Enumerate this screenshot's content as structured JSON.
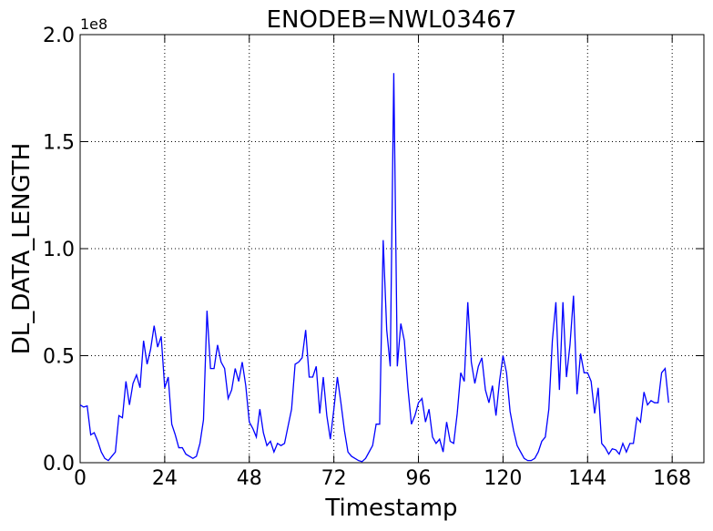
{
  "chart_data": {
    "type": "line",
    "title": "ENODEB=NWL03467",
    "x_label": "Timestamp",
    "y_label": "DL_DATA_LENGTH",
    "y_offset_text": "1e8",
    "x": [
      0,
      1,
      2,
      3,
      4,
      5,
      6,
      7,
      8,
      9,
      10,
      11,
      12,
      13,
      14,
      15,
      16,
      17,
      18,
      19,
      20,
      21,
      22,
      23,
      24,
      25,
      26,
      27,
      28,
      29,
      30,
      31,
      32,
      33,
      34,
      35,
      36,
      37,
      38,
      39,
      40,
      41,
      42,
      43,
      44,
      45,
      46,
      47,
      48,
      49,
      50,
      51,
      52,
      53,
      54,
      55,
      56,
      57,
      58,
      59,
      60,
      61,
      62,
      63,
      64,
      65,
      66,
      67,
      68,
      69,
      70,
      71,
      72,
      73,
      74,
      75,
      76,
      77,
      78,
      79,
      80,
      81,
      82,
      83,
      84,
      85,
      86,
      87,
      88,
      89,
      90,
      91,
      92,
      93,
      94,
      95,
      96,
      97,
      98,
      99,
      100,
      101,
      102,
      103,
      104,
      105,
      106,
      107,
      108,
      109,
      110,
      111,
      112,
      113,
      114,
      115,
      116,
      117,
      118,
      119,
      120,
      121,
      122,
      123,
      124,
      125,
      126,
      127,
      128,
      129,
      130,
      131,
      132,
      133,
      134,
      135,
      136,
      137,
      138,
      139,
      140,
      141,
      142,
      143,
      144,
      145,
      146,
      147,
      148,
      149,
      150,
      151,
      152,
      153,
      154,
      155,
      156,
      157,
      158,
      159,
      160,
      161,
      162,
      163,
      164,
      165,
      166,
      167
    ],
    "series": [
      {
        "name": "DL_DATA_LENGTH",
        "color": "#0000ff",
        "values": [
          0.27,
          0.26,
          0.265,
          0.13,
          0.14,
          0.1,
          0.05,
          0.02,
          0.01,
          0.03,
          0.05,
          0.22,
          0.21,
          0.38,
          0.27,
          0.37,
          0.41,
          0.35,
          0.57,
          0.46,
          0.53,
          0.64,
          0.54,
          0.59,
          0.35,
          0.4,
          0.18,
          0.13,
          0.07,
          0.07,
          0.04,
          0.03,
          0.02,
          0.03,
          0.09,
          0.2,
          0.71,
          0.44,
          0.44,
          0.55,
          0.47,
          0.44,
          0.3,
          0.34,
          0.44,
          0.38,
          0.47,
          0.36,
          0.19,
          0.16,
          0.12,
          0.25,
          0.14,
          0.08,
          0.1,
          0.05,
          0.09,
          0.08,
          0.09,
          0.17,
          0.25,
          0.46,
          0.47,
          0.49,
          0.62,
          0.4,
          0.4,
          0.45,
          0.23,
          0.4,
          0.22,
          0.11,
          0.25,
          0.4,
          0.28,
          0.15,
          0.05,
          0.03,
          0.02,
          0.01,
          0.005,
          0.02,
          0.05,
          0.08,
          0.18,
          0.18,
          1.04,
          0.62,
          0.45,
          1.82,
          0.45,
          0.65,
          0.57,
          0.35,
          0.18,
          0.22,
          0.28,
          0.3,
          0.19,
          0.25,
          0.12,
          0.09,
          0.11,
          0.05,
          0.19,
          0.1,
          0.09,
          0.23,
          0.42,
          0.38,
          0.75,
          0.47,
          0.37,
          0.45,
          0.49,
          0.34,
          0.28,
          0.36,
          0.22,
          0.38,
          0.5,
          0.42,
          0.24,
          0.15,
          0.08,
          0.05,
          0.02,
          0.01,
          0.01,
          0.02,
          0.05,
          0.1,
          0.12,
          0.25,
          0.57,
          0.75,
          0.34,
          0.75,
          0.4,
          0.55,
          0.78,
          0.32,
          0.51,
          0.42,
          0.42,
          0.38,
          0.23,
          0.35,
          0.09,
          0.07,
          0.04,
          0.065,
          0.06,
          0.04,
          0.09,
          0.05,
          0.09,
          0.09,
          0.21,
          0.19,
          0.33,
          0.27,
          0.29,
          0.28,
          0.28,
          0.42,
          0.44,
          0.28
        ]
      }
    ],
    "xlim": [
      0,
      177
    ],
    "xticks": [
      0,
      24,
      48,
      72,
      96,
      120,
      144,
      168
    ],
    "ylim": [
      0,
      2
    ],
    "yticks": [
      {
        "value": 0,
        "label": "0.0"
      },
      0.5,
      {
        "value": 1,
        "label": "1.0"
      },
      1.5,
      {
        "value": 2,
        "label": "2.0"
      }
    ],
    "grid": true
  }
}
